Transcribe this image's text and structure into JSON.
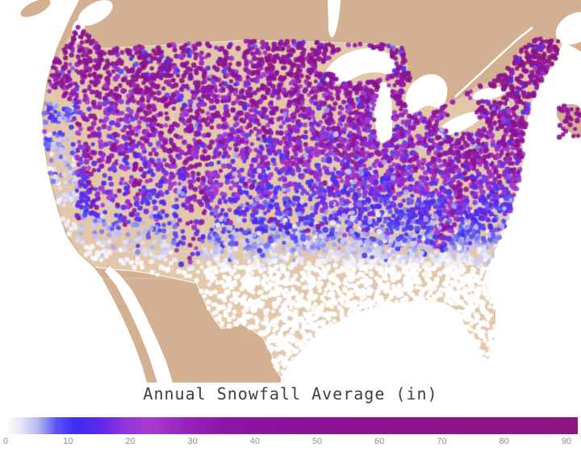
{
  "chart_data": {
    "type": "scatter",
    "subtype": "geographic-station-map",
    "title": "Annual Snowfall Average (in)",
    "region_shown": "Contiguous United States with surrounding Canada and Mexico landmass",
    "units": "inches",
    "legend_position": "bottom horizontal colorbar",
    "grid": false,
    "colorbar": {
      "min": 0,
      "max": 91.7,
      "tick_values": [
        0,
        10,
        20,
        30,
        40,
        50,
        60,
        70,
        80,
        90
      ],
      "tick_labels": [
        "0",
        "10",
        "20",
        "30",
        "40",
        "50",
        "60",
        "70",
        "80",
        "90"
      ],
      "stops": [
        {
          "v": 0,
          "color": "#ffffff"
        },
        {
          "v": 2,
          "color": "#e9e9f9"
        },
        {
          "v": 5,
          "color": "#b7b9f2"
        },
        {
          "v": 8,
          "color": "#5b55f3"
        },
        {
          "v": 11,
          "color": "#3e2ef3"
        },
        {
          "v": 15,
          "color": "#5f29e7"
        },
        {
          "v": 19,
          "color": "#8d35dd"
        },
        {
          "v": 23,
          "color": "#a93bd1"
        },
        {
          "v": 28,
          "color": "#9a25bf"
        },
        {
          "v": 34,
          "color": "#8c17a9"
        },
        {
          "v": 45,
          "color": "#8a129a"
        },
        {
          "v": 65,
          "color": "#8c128c"
        },
        {
          "v": 91.7,
          "color": "#8e1580"
        }
      ]
    },
    "map_colors": {
      "ocean": "#ffffff",
      "us_land": "#e2c7ab",
      "other_land": "#d3b092",
      "lakes": "#ffffff",
      "state_lines": "#ffffff"
    },
    "stations": {
      "count_approx": 4500,
      "dot_radius_px": 3,
      "marker": "circle"
    },
    "regional_pattern": [
      {
        "region": "Gulf Coast, Florida, southern Texas, southern California, desert Southwest",
        "avg_snowfall_in": "0-2",
        "dot_color": "white"
      },
      {
        "region": "Southeast and mid-South",
        "avg_snowfall_in": "2-8",
        "dot_color": "pale lavender-blue"
      },
      {
        "region": "Central Plains, Ohio Valley, mid-Atlantic",
        "avg_snowfall_in": "8-18",
        "dot_color": "blue"
      },
      {
        "region": "Northern Plains, Midwest, lower Great Lakes",
        "avg_snowfall_in": "20-40",
        "dot_color": "violet-purple"
      },
      {
        "region": "Upper Great Lakes, northern New England, northern Rockies",
        "avg_snowfall_in": "45-90",
        "dot_color": "dark magenta"
      },
      {
        "region": "Colorado Rockies, Wasatch, Sierra Nevada, Cascades, Appalachian ridge",
        "avg_snowfall_in": "30-90 local maxima",
        "dot_color": "dark magenta clusters"
      },
      {
        "region": "Pacific coast lowlands of California",
        "avg_snowfall_in": "0-6",
        "dot_color": "white"
      }
    ],
    "text_colors": {
      "title": "#3f3f3f",
      "ticks": "#8e8e8e"
    }
  }
}
